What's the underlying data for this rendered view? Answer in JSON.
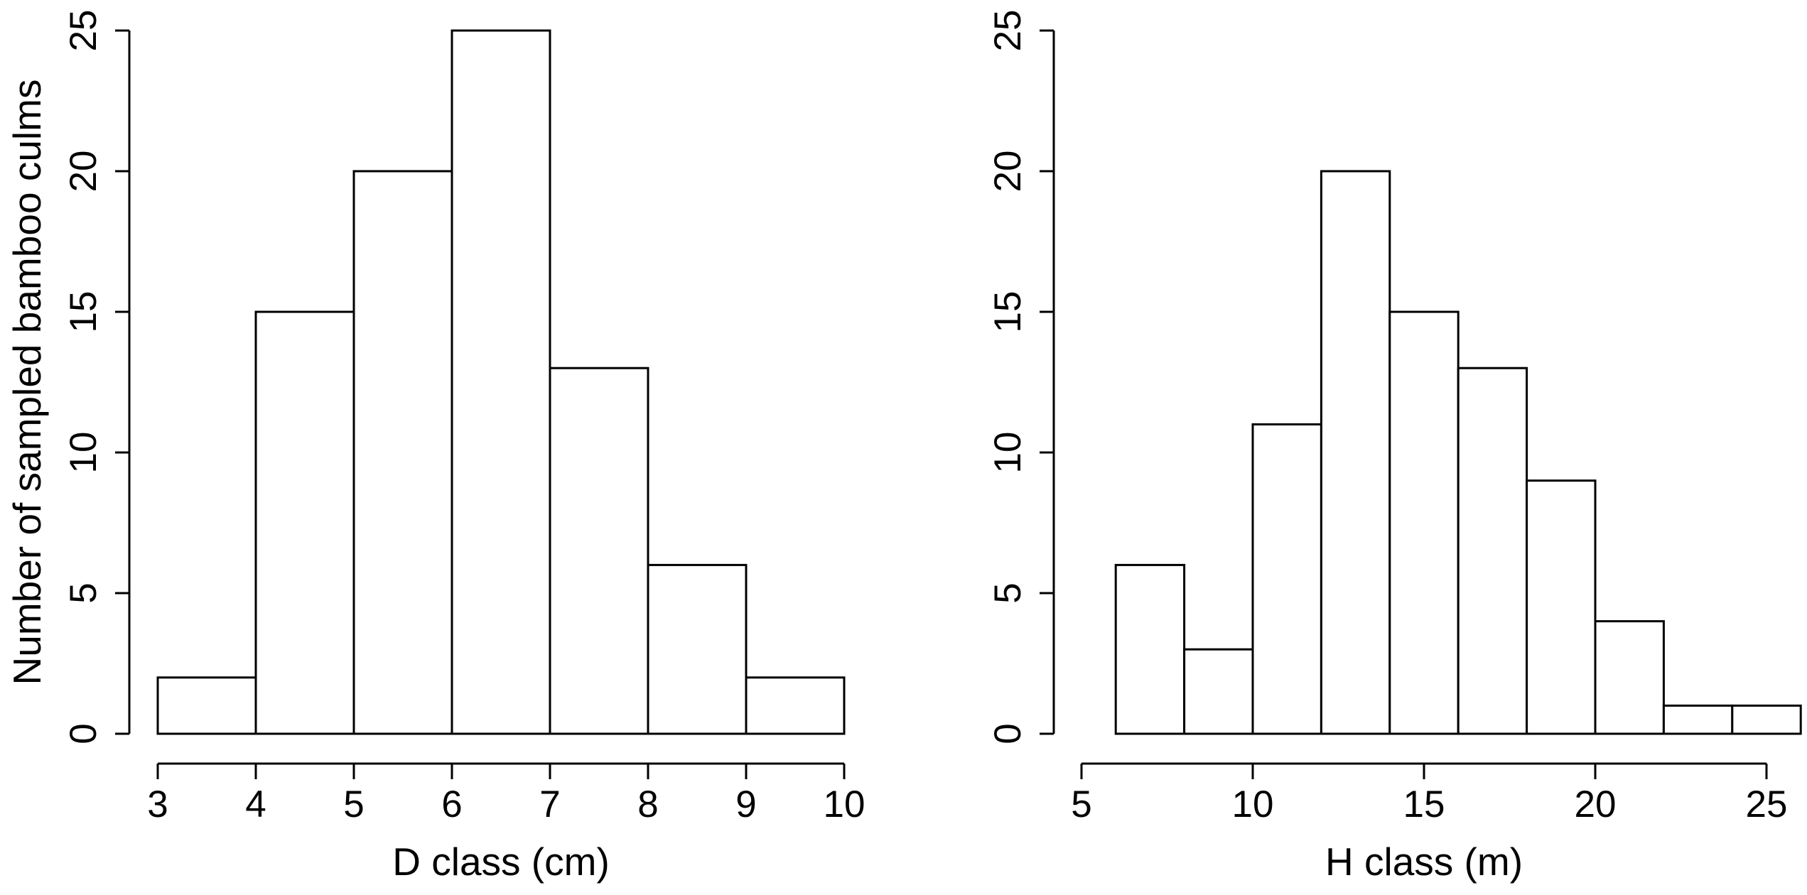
{
  "figure": {
    "background": "#ffffff",
    "text_color": "#000000",
    "axis_color": "#000000"
  },
  "chart_data": [
    {
      "type": "bar",
      "subtype": "histogram",
      "title": "",
      "xlabel": "D class (cm)",
      "ylabel": "Number of sampled bamboo culms",
      "bin_start": 3,
      "bin_width": 1,
      "bin_edges": [
        3,
        4,
        5,
        6,
        7,
        8,
        9,
        10
      ],
      "counts": [
        2,
        15,
        20,
        25,
        13,
        6,
        2
      ],
      "categories": [
        "3-4",
        "4-5",
        "5-6",
        "6-7",
        "7-8",
        "8-9",
        "9-10"
      ],
      "x_ticks": [
        3,
        4,
        5,
        6,
        7,
        8,
        9,
        10
      ],
      "y_ticks": [
        0,
        5,
        10,
        15,
        20,
        25
      ],
      "xlim": [
        3,
        10
      ],
      "ylim": [
        0,
        25
      ],
      "grid": false,
      "legend": null,
      "bar_fill": "#ffffff",
      "bar_stroke": "#000000"
    },
    {
      "type": "bar",
      "subtype": "histogram",
      "title": "",
      "xlabel": "H class (m)",
      "ylabel": "",
      "bin_start": 6,
      "bin_width": 2,
      "bin_edges": [
        6,
        8,
        10,
        12,
        14,
        16,
        18,
        20,
        22,
        24,
        26
      ],
      "counts": [
        6,
        3,
        11,
        20,
        15,
        13,
        9,
        4,
        1,
        1
      ],
      "categories": [
        "6-8",
        "8-10",
        "10-12",
        "12-14",
        "14-16",
        "16-18",
        "18-20",
        "20-22",
        "22-24",
        "24-26"
      ],
      "x_ticks": [
        5,
        10,
        15,
        20,
        25
      ],
      "y_ticks": [
        0,
        5,
        10,
        15,
        20,
        25
      ],
      "xlim": [
        5,
        26
      ],
      "ylim": [
        0,
        25
      ],
      "grid": false,
      "legend": null,
      "bar_fill": "#ffffff",
      "bar_stroke": "#000000"
    }
  ]
}
